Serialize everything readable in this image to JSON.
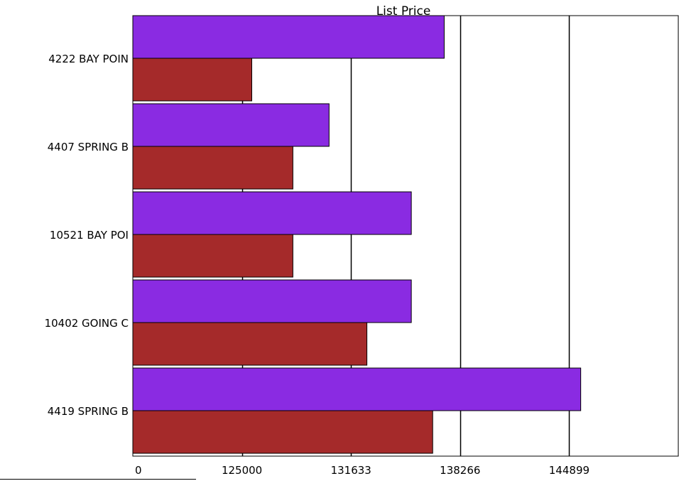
{
  "chart_data": {
    "type": "bar",
    "orientation": "horizontal",
    "title": "List Price",
    "xlabel": "",
    "ylabel": "",
    "x_axis_break": true,
    "x_ticks": [
      0,
      125000,
      131633,
      138266,
      144899
    ],
    "x_tick_labels": [
      "0",
      "125000",
      "131633",
      "138266",
      "144899"
    ],
    "xlim": [
      118367,
      151532
    ],
    "grid": "vertical",
    "legend": "none",
    "categories": [
      "4222  BAY POIN",
      "4407  SPRING B",
      "10521  BAY POI",
      "10402  GOING C",
      "4419  SPRING B"
    ],
    "series": [
      {
        "color": "#8a2be2",
        "values": [
          137300,
          130300,
          135300,
          135300,
          145600
        ]
      },
      {
        "color": "#a52a2a",
        "values": [
          125600,
          128100,
          128100,
          132600,
          136600
        ]
      }
    ]
  }
}
